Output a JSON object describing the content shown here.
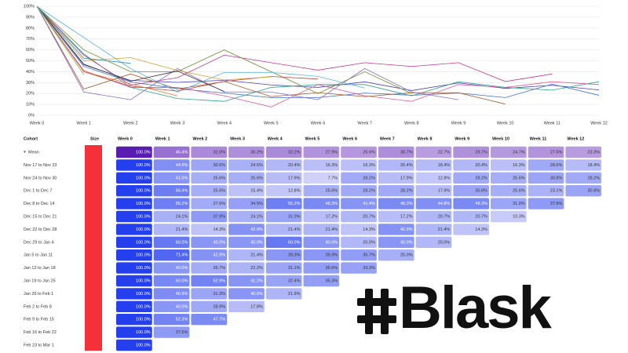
{
  "chart_data": {
    "type": "line",
    "categories": [
      "Week 0",
      "Week 1",
      "Week 2",
      "Week 3",
      "Week 4",
      "Week 5",
      "Week 6",
      "Week 7",
      "Week 8",
      "Week 9",
      "Week 10",
      "Week 11",
      "Week 12"
    ],
    "ylim": [
      0,
      100
    ],
    "yticks": [
      {
        "value": 0,
        "label": "0%"
      },
      {
        "value": 10,
        "label": "10%"
      },
      {
        "value": 20,
        "label": "20%"
      },
      {
        "value": 30,
        "label": "30%"
      },
      {
        "value": 40,
        "label": "40%"
      },
      {
        "value": 50,
        "label": "50%"
      },
      {
        "value": 60,
        "label": "60%"
      },
      {
        "value": 70,
        "label": "70%"
      },
      {
        "value": 80,
        "label": "80%"
      },
      {
        "value": 90,
        "label": "90%"
      },
      {
        "value": 100,
        "label": "100%"
      }
    ],
    "grid": true,
    "series": [
      {
        "color": "#4d3fb8",
        "values": [
          100,
          46.4,
          32.0,
          30.2,
          32.2,
          27.9,
          25.6,
          30.7,
          22.7,
          29.7,
          24.7,
          27.5,
          23.3
        ]
      },
      {
        "color": "#3b6fd6",
        "values": [
          100,
          44.9,
          30.6,
          24.5,
          20.4,
          16.3,
          16.3,
          20.4,
          18.4,
          20.4,
          16.3,
          28.6,
          18.4
        ]
      },
      {
        "color": "#e05a9a",
        "values": [
          100,
          41.0,
          25.6,
          25.6,
          17.9,
          7.7,
          28.2,
          17.9,
          12.8,
          28.2,
          25.6,
          30.8,
          28.2
        ]
      },
      {
        "color": "#2aa58a",
        "values": [
          100,
          56.4,
          25.6,
          15.4,
          12.8,
          25.6,
          28.2,
          28.2,
          17.9,
          30.8,
          25.6,
          23.1,
          30.8
        ]
      },
      {
        "color": "#c9358a",
        "values": [
          100,
          55.2,
          27.6,
          34.5,
          55.2,
          48.3,
          41.4,
          48.3,
          44.8,
          48.3,
          31.0,
          37.9,
          null
        ]
      },
      {
        "color": "#a05a2c",
        "values": [
          100,
          24.1,
          37.9,
          24.1,
          31.0,
          17.2,
          20.7,
          17.2,
          20.7,
          20.7,
          10.3,
          null,
          null
        ]
      },
      {
        "color": "#8a6bd1",
        "values": [
          100,
          21.4,
          14.3,
          42.9,
          21.4,
          21.4,
          14.3,
          42.9,
          21.4,
          14.3,
          null,
          null,
          null
        ]
      },
      {
        "color": "#6a8f2a",
        "values": [
          100,
          60.0,
          40.0,
          40.0,
          60.0,
          40.0,
          20.0,
          40.0,
          20.0,
          null,
          null,
          null,
          null
        ]
      },
      {
        "color": "#5fb3e6",
        "values": [
          100,
          71.4,
          42.9,
          21.4,
          39.3,
          39.3,
          35.7,
          25.0,
          null,
          null,
          null,
          null,
          null
        ]
      },
      {
        "color": "#c43b3b",
        "values": [
          100,
          40.0,
          26.7,
          22.2,
          31.1,
          35.6,
          33.3,
          null,
          null,
          null,
          null,
          null,
          null
        ]
      },
      {
        "color": "#d4a02a",
        "values": [
          100,
          50.0,
          52.9,
          41.2,
          32.4,
          35.3,
          null,
          null,
          null,
          null,
          null,
          null,
          null
        ]
      },
      {
        "color": "#333333",
        "values": [
          100,
          46.9,
          31.3,
          40.6,
          21.9,
          null,
          null,
          null,
          null,
          null,
          null,
          null,
          null
        ]
      },
      {
        "color": "#e07b39",
        "values": [
          100,
          40.0,
          28.9,
          17.8,
          null,
          null,
          null,
          null,
          null,
          null,
          null,
          null,
          null
        ]
      },
      {
        "color": "#1f8fbf",
        "values": [
          100,
          52.3,
          47.7,
          null,
          null,
          null,
          null,
          null,
          null,
          null,
          null,
          null,
          null
        ]
      },
      {
        "color": "#7ab85c",
        "values": [
          100,
          37.5,
          null,
          null,
          null,
          null,
          null,
          null,
          null,
          null,
          null,
          null,
          null
        ]
      }
    ]
  },
  "table": {
    "header": [
      "Cohort",
      "Size",
      "Week 0",
      "Week 1",
      "Week 2",
      "Week 3",
      "Week 4",
      "Week 5",
      "Week 6",
      "Week 7",
      "Week 8",
      "Week 9",
      "Week 10",
      "Week 11",
      "Week 12"
    ],
    "rows": [
      {
        "cohort": "Mean",
        "cells": [
          "100.0%",
          "46.4%",
          "32.0%",
          "30.2%",
          "32.2%",
          "27.9%",
          "25.6%",
          "30.7%",
          "22.7%",
          "29.7%",
          "24.7%",
          "27.5%",
          "23.3%"
        ]
      },
      {
        "cohort": "Nov 17 to Nov 23",
        "cells": [
          "100.0%",
          "44.9%",
          "30.6%",
          "24.5%",
          "20.4%",
          "16.3%",
          "16.3%",
          "20.4%",
          "18.4%",
          "20.4%",
          "16.3%",
          "28.6%",
          "18.4%"
        ]
      },
      {
        "cohort": "Nov 24 to Nov 30",
        "cells": [
          "100.0%",
          "41.0%",
          "25.6%",
          "25.6%",
          "17.9%",
          "7.7%",
          "28.2%",
          "17.9%",
          "12.8%",
          "28.2%",
          "25.6%",
          "30.8%",
          "28.2%"
        ]
      },
      {
        "cohort": "Dec 1 to Dec 7",
        "cells": [
          "100.0%",
          "56.4%",
          "25.6%",
          "15.4%",
          "12.8%",
          "25.6%",
          "28.2%",
          "28.2%",
          "17.9%",
          "30.8%",
          "25.6%",
          "23.1%",
          "30.8%"
        ]
      },
      {
        "cohort": "Dec 8 to Dec 14",
        "cells": [
          "100.0%",
          "55.2%",
          "27.6%",
          "34.5%",
          "55.2%",
          "48.3%",
          "41.4%",
          "48.3%",
          "44.8%",
          "48.3%",
          "31.0%",
          "37.9%"
        ]
      },
      {
        "cohort": "Dec 15 to Dec 21",
        "cells": [
          "100.0%",
          "24.1%",
          "37.9%",
          "24.1%",
          "31.0%",
          "17.2%",
          "20.7%",
          "17.2%",
          "20.7%",
          "20.7%",
          "10.3%"
        ]
      },
      {
        "cohort": "Dec 22 to Dec 28",
        "cells": [
          "100.0%",
          "21.4%",
          "14.3%",
          "42.9%",
          "21.4%",
          "21.4%",
          "14.3%",
          "42.9%",
          "21.4%",
          "14.3%"
        ]
      },
      {
        "cohort": "Dec 29 to Jan 4",
        "cells": [
          "100.0%",
          "60.0%",
          "40.0%",
          "40.0%",
          "60.0%",
          "40.0%",
          "20.0%",
          "40.0%",
          "20.0%"
        ]
      },
      {
        "cohort": "Jan 5 to Jan 11",
        "cells": [
          "100.0%",
          "71.4%",
          "42.9%",
          "21.4%",
          "39.3%",
          "39.3%",
          "35.7%",
          "25.0%"
        ]
      },
      {
        "cohort": "Jan 12 to Jan 18",
        "cells": [
          "100.0%",
          "40.0%",
          "26.7%",
          "22.2%",
          "31.1%",
          "35.6%",
          "33.3%"
        ]
      },
      {
        "cohort": "Jan 19 to Jan 25",
        "cells": [
          "100.0%",
          "50.0%",
          "52.9%",
          "41.2%",
          "32.4%",
          "35.3%"
        ]
      },
      {
        "cohort": "Jan 26 to Feb 1",
        "cells": [
          "100.0%",
          "46.9%",
          "31.3%",
          "40.6%",
          "21.9%"
        ]
      },
      {
        "cohort": "Feb 2 to Feb 8",
        "cells": [
          "100.0%",
          "40.0%",
          "28.9%",
          "17.8%"
        ]
      },
      {
        "cohort": "Feb 9 to Feb 15",
        "cells": [
          "100.0%",
          "52.3%",
          "47.7%"
        ]
      },
      {
        "cohort": "Feb 16 to Feb 22",
        "cells": [
          "100.0%",
          "37.5%"
        ]
      },
      {
        "cohort": "Feb 23 to Mar 1",
        "cells": [
          "100.0%"
        ]
      }
    ]
  },
  "logo": {
    "text": "Blask"
  }
}
